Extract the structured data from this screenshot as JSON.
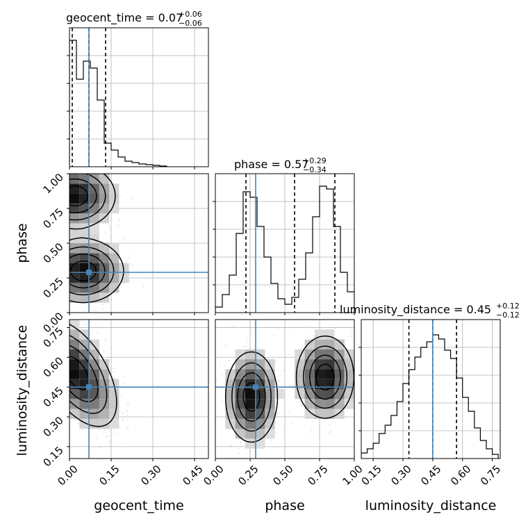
{
  "chart_data": {
    "type": "corner",
    "parameters": [
      "geocent_time",
      "phase",
      "luminosity_distance"
    ],
    "truths": {
      "geocent_time": 0.07,
      "phase": 0.29,
      "luminosity_distance": 0.45
    },
    "axes": {
      "geocent_time": {
        "range": [
          0.0,
          0.5
        ],
        "ticks": [
          "0.00",
          "0.15",
          "0.30",
          "0.45"
        ],
        "tick_values": [
          0.0,
          0.15,
          0.3,
          0.45
        ]
      },
      "phase": {
        "range": [
          0.0,
          1.0
        ],
        "ticks": [
          "0.00",
          "0.25",
          "0.50",
          "0.75",
          "1.00"
        ],
        "tick_values": [
          0.0,
          0.25,
          0.5,
          0.75,
          1.0
        ]
      },
      "luminosity_distance": {
        "range": [
          0.09,
          0.79
        ],
        "ticks": [
          "0.15",
          "0.30",
          "0.45",
          "0.60",
          "0.75"
        ],
        "tick_values": [
          0.15,
          0.3,
          0.45,
          0.6,
          0.75
        ]
      }
    },
    "marginals": [
      {
        "param": "geocent_time",
        "title": {
          "text": "geocent_time = 0.07",
          "plus": "+0.06",
          "minus": "−0.06"
        },
        "quantiles": [
          0.01,
          0.07,
          0.13
        ],
        "bin_edges": [
          0.0,
          0.025,
          0.05,
          0.075,
          0.1,
          0.125,
          0.15,
          0.175,
          0.2,
          0.225,
          0.25,
          0.275,
          0.3,
          0.325,
          0.35
        ],
        "counts": [
          0.91,
          0.63,
          0.76,
          0.71,
          0.48,
          0.17,
          0.12,
          0.07,
          0.04,
          0.03,
          0.02,
          0.015,
          0.01,
          0.005
        ]
      },
      {
        "param": "phase",
        "title": {
          "text": "phase = 0.57",
          "plus": "+0.29",
          "minus": "−0.34"
        },
        "quantiles": [
          0.22,
          0.57,
          0.86
        ],
        "bin_edges": [
          0.0,
          0.05,
          0.1,
          0.15,
          0.2,
          0.25,
          0.3,
          0.35,
          0.4,
          0.45,
          0.5,
          0.55,
          0.6,
          0.65,
          0.7,
          0.75,
          0.8,
          0.85,
          0.9,
          0.95,
          1.0
        ],
        "counts": [
          0.04,
          0.13,
          0.27,
          0.57,
          0.87,
          0.83,
          0.62,
          0.4,
          0.21,
          0.1,
          0.06,
          0.11,
          0.24,
          0.43,
          0.69,
          0.91,
          0.89,
          0.62,
          0.29,
          0.15
        ]
      },
      {
        "param": "luminosity_distance",
        "title": {
          "text": "luminosity_distance = 0.45",
          "plus": "+0.12",
          "minus": "−0.12"
        },
        "quantiles": [
          0.33,
          0.45,
          0.57
        ],
        "bin_edges": [
          0.09,
          0.12,
          0.15,
          0.18,
          0.21,
          0.24,
          0.27,
          0.3,
          0.33,
          0.36,
          0.39,
          0.42,
          0.45,
          0.48,
          0.51,
          0.54,
          0.57,
          0.6,
          0.63,
          0.66,
          0.69,
          0.72,
          0.75,
          0.78
        ],
        "counts": [
          0.04,
          0.07,
          0.11,
          0.18,
          0.24,
          0.31,
          0.41,
          0.54,
          0.64,
          0.73,
          0.8,
          0.84,
          0.89,
          0.86,
          0.78,
          0.72,
          0.58,
          0.44,
          0.34,
          0.22,
          0.13,
          0.07,
          0.03
        ]
      }
    ],
    "pairs": [
      {
        "x": "geocent_time",
        "y": "phase",
        "modes": [
          {
            "x": 0.02,
            "y": 0.84,
            "sx": 0.07,
            "sy": 0.11,
            "w": 1.0
          },
          {
            "x": 0.05,
            "y": 0.3,
            "sx": 0.07,
            "sy": 0.11,
            "w": 1.0
          }
        ]
      },
      {
        "x": "geocent_time",
        "y": "luminosity_distance",
        "modes": [
          {
            "x": 0.025,
            "y": 0.52,
            "sx": 0.07,
            "sy": 0.13,
            "w": 1.0,
            "rho": -0.55
          }
        ]
      },
      {
        "x": "phase",
        "y": "luminosity_distance",
        "modes": [
          {
            "x": 0.26,
            "y": 0.4,
            "sx": 0.09,
            "sy": 0.11,
            "w": 1.0
          },
          {
            "x": 0.79,
            "y": 0.5,
            "sx": 0.1,
            "sy": 0.1,
            "w": 1.0
          }
        ]
      }
    ],
    "colors": {
      "truth": "#4682b4",
      "hist": "#000000",
      "quantile": "#000000",
      "grid": "#b0b0b0",
      "points": "#999999"
    },
    "grid": true
  }
}
